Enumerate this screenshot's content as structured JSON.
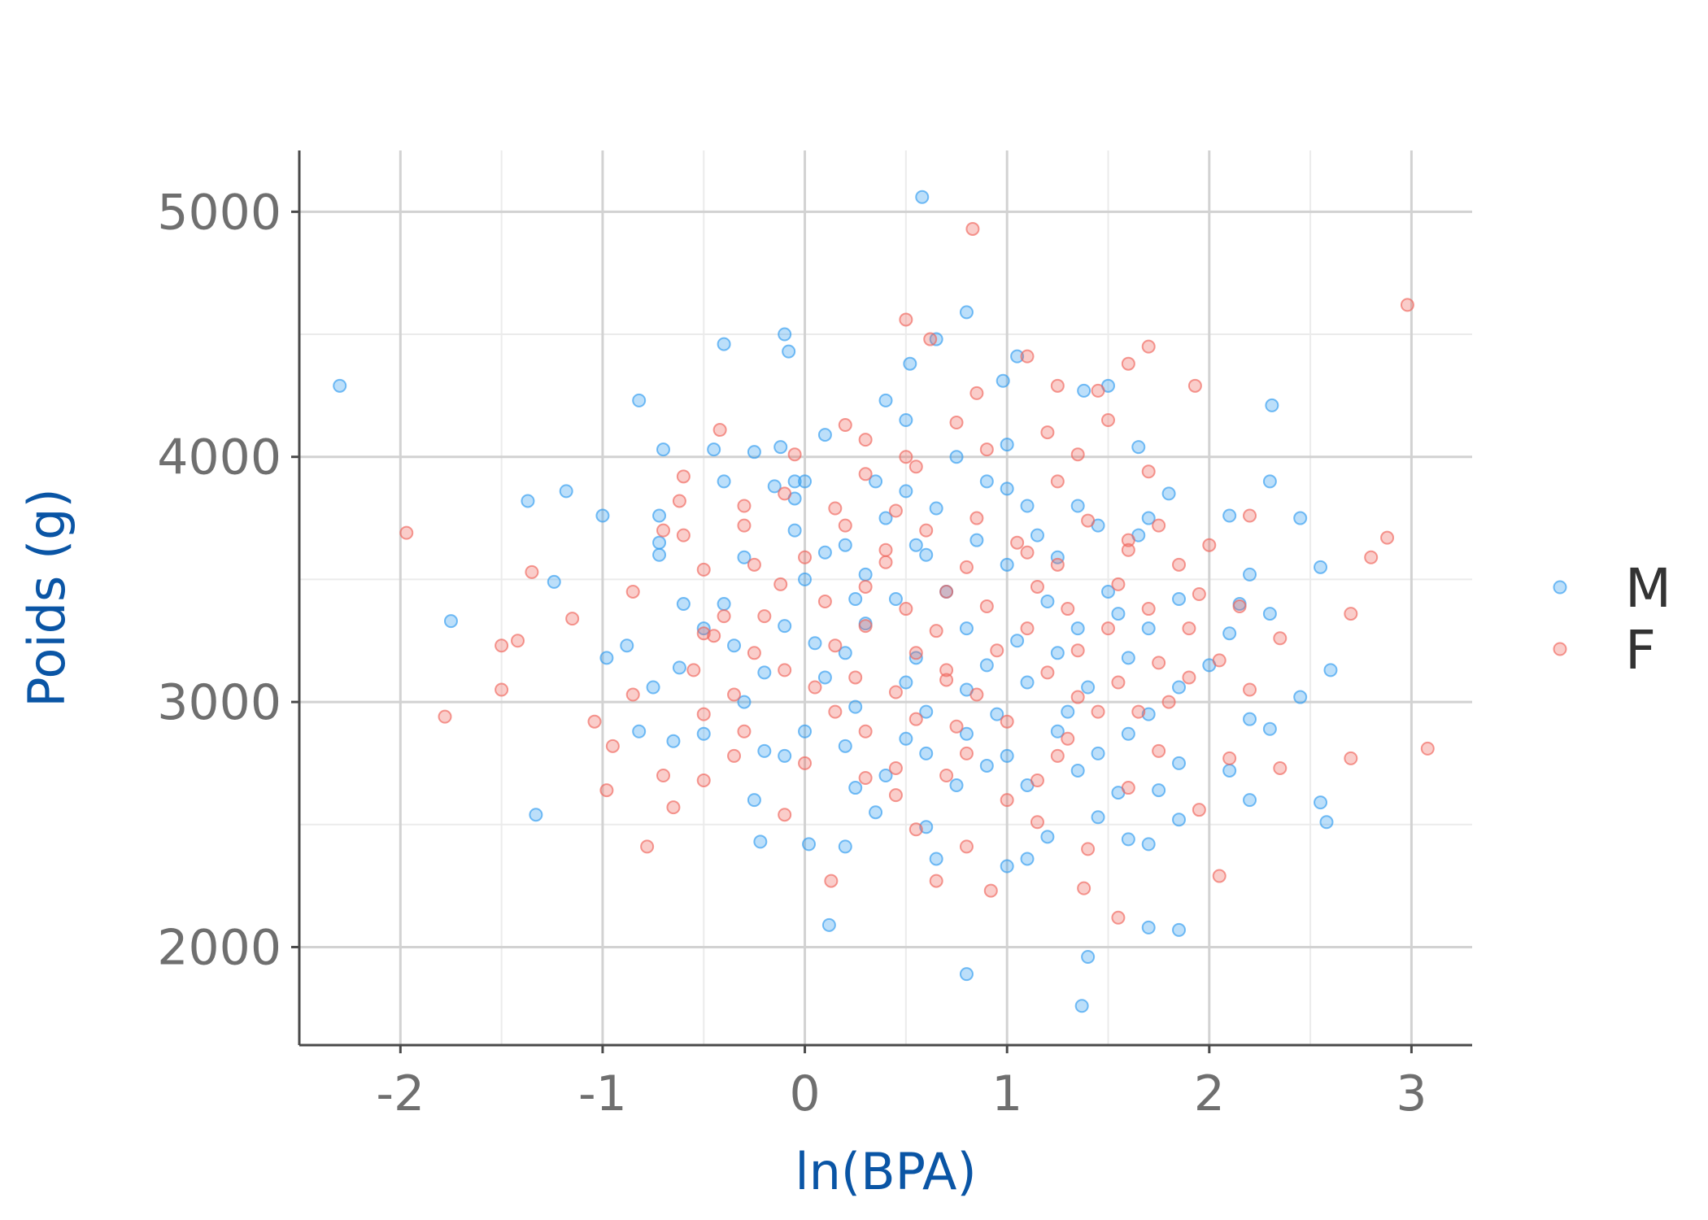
{
  "chart_data": {
    "type": "scatter",
    "title": "",
    "xlabel": "ln(BPA)",
    "ylabel": "Poids (g)",
    "xlim": [
      -2.5,
      3.3
    ],
    "ylim": [
      1600,
      5250
    ],
    "xticks": [
      -2,
      -1,
      0,
      1,
      2,
      3
    ],
    "xtick_labels": [
      "-2",
      "-1",
      "0",
      "1",
      "2",
      "3"
    ],
    "yticks": [
      2000,
      3000,
      4000,
      5000
    ],
    "ytick_labels": [
      "2000",
      "3000",
      "4000",
      "5000"
    ],
    "grid": true,
    "legend_position": "right",
    "series": [
      {
        "name": "M",
        "color": "#2f9bf0",
        "points": [
          [
            -2.3,
            4290
          ],
          [
            0.58,
            5060
          ],
          [
            0.8,
            4590
          ],
          [
            -0.1,
            4500
          ],
          [
            -0.08,
            4430
          ],
          [
            0.65,
            4480
          ],
          [
            -0.4,
            4460
          ],
          [
            0.52,
            4380
          ],
          [
            1.05,
            4410
          ],
          [
            0.98,
            4310
          ],
          [
            1.5,
            4290
          ],
          [
            1.38,
            4270
          ],
          [
            -0.82,
            4230
          ],
          [
            0.4,
            4230
          ],
          [
            0.5,
            4150
          ],
          [
            0.1,
            4090
          ],
          [
            2.31,
            4210
          ],
          [
            -0.7,
            4030
          ],
          [
            -0.45,
            4030
          ],
          [
            -0.25,
            4020
          ],
          [
            -0.12,
            4040
          ],
          [
            1.0,
            4050
          ],
          [
            1.65,
            4040
          ],
          [
            0.75,
            4000
          ],
          [
            -1.37,
            3820
          ],
          [
            -1.18,
            3860
          ],
          [
            -0.4,
            3900
          ],
          [
            -0.05,
            3900
          ],
          [
            0.0,
            3900
          ],
          [
            -0.15,
            3880
          ],
          [
            0.5,
            3860
          ],
          [
            0.35,
            3900
          ],
          [
            0.9,
            3900
          ],
          [
            1.0,
            3870
          ],
          [
            1.35,
            3800
          ],
          [
            1.8,
            3850
          ],
          [
            2.3,
            3900
          ],
          [
            -1.0,
            3760
          ],
          [
            -0.72,
            3760
          ],
          [
            -0.72,
            3650
          ],
          [
            -0.05,
            3700
          ],
          [
            0.4,
            3750
          ],
          [
            0.65,
            3790
          ],
          [
            1.1,
            3800
          ],
          [
            1.45,
            3720
          ],
          [
            1.7,
            3750
          ],
          [
            2.1,
            3760
          ],
          [
            2.45,
            3750
          ],
          [
            -0.72,
            3600
          ],
          [
            0.2,
            3640
          ],
          [
            0.55,
            3640
          ],
          [
            0.85,
            3660
          ],
          [
            1.15,
            3680
          ],
          [
            1.65,
            3680
          ],
          [
            -1.24,
            3490
          ],
          [
            -0.3,
            3590
          ],
          [
            0.1,
            3610
          ],
          [
            0.6,
            3600
          ],
          [
            1.0,
            3560
          ],
          [
            1.25,
            3590
          ],
          [
            2.2,
            3520
          ],
          [
            2.55,
            3550
          ],
          [
            -1.75,
            3330
          ],
          [
            -0.6,
            3400
          ],
          [
            -0.4,
            3400
          ],
          [
            0.0,
            3500
          ],
          [
            0.25,
            3420
          ],
          [
            0.45,
            3420
          ],
          [
            0.7,
            3450
          ],
          [
            1.2,
            3410
          ],
          [
            1.5,
            3450
          ],
          [
            1.85,
            3420
          ],
          [
            2.15,
            3400
          ],
          [
            2.3,
            3360
          ],
          [
            -0.5,
            3300
          ],
          [
            -0.1,
            3310
          ],
          [
            0.3,
            3320
          ],
          [
            0.8,
            3300
          ],
          [
            1.05,
            3250
          ],
          [
            1.35,
            3300
          ],
          [
            1.7,
            3300
          ],
          [
            2.1,
            3280
          ],
          [
            -0.88,
            3230
          ],
          [
            -0.35,
            3230
          ],
          [
            0.2,
            3200
          ],
          [
            0.55,
            3180
          ],
          [
            0.9,
            3150
          ],
          [
            1.25,
            3200
          ],
          [
            1.6,
            3180
          ],
          [
            2.0,
            3150
          ],
          [
            2.6,
            3130
          ],
          [
            -0.98,
            3180
          ],
          [
            -0.62,
            3140
          ],
          [
            -0.2,
            3120
          ],
          [
            0.1,
            3100
          ],
          [
            0.5,
            3080
          ],
          [
            0.8,
            3050
          ],
          [
            1.1,
            3080
          ],
          [
            1.4,
            3060
          ],
          [
            1.85,
            3060
          ],
          [
            2.45,
            3020
          ],
          [
            -0.75,
            3060
          ],
          [
            -0.3,
            3000
          ],
          [
            0.25,
            2980
          ],
          [
            0.6,
            2960
          ],
          [
            0.95,
            2950
          ],
          [
            1.3,
            2960
          ],
          [
            1.7,
            2950
          ],
          [
            2.2,
            2930
          ],
          [
            -0.82,
            2880
          ],
          [
            -0.5,
            2870
          ],
          [
            0.0,
            2880
          ],
          [
            0.5,
            2850
          ],
          [
            0.8,
            2870
          ],
          [
            1.25,
            2880
          ],
          [
            1.6,
            2870
          ],
          [
            2.3,
            2890
          ],
          [
            -0.65,
            2840
          ],
          [
            -0.2,
            2800
          ],
          [
            0.2,
            2820
          ],
          [
            0.6,
            2790
          ],
          [
            1.0,
            2780
          ],
          [
            1.45,
            2790
          ],
          [
            1.85,
            2750
          ],
          [
            -0.1,
            2780
          ],
          [
            0.4,
            2700
          ],
          [
            0.9,
            2740
          ],
          [
            1.35,
            2720
          ],
          [
            2.1,
            2720
          ],
          [
            -0.25,
            2600
          ],
          [
            0.25,
            2650
          ],
          [
            0.75,
            2660
          ],
          [
            1.1,
            2660
          ],
          [
            1.55,
            2630
          ],
          [
            1.75,
            2640
          ],
          [
            2.2,
            2600
          ],
          [
            2.55,
            2590
          ],
          [
            -1.33,
            2540
          ],
          [
            0.35,
            2550
          ],
          [
            0.6,
            2490
          ],
          [
            1.2,
            2450
          ],
          [
            1.45,
            2530
          ],
          [
            1.85,
            2520
          ],
          [
            2.58,
            2510
          ],
          [
            -0.22,
            2430
          ],
          [
            0.02,
            2420
          ],
          [
            0.2,
            2410
          ],
          [
            1.6,
            2440
          ],
          [
            1.7,
            2420
          ],
          [
            0.65,
            2360
          ],
          [
            1.0,
            2330
          ],
          [
            1.1,
            2360
          ],
          [
            0.12,
            2090
          ],
          [
            1.7,
            2080
          ],
          [
            1.85,
            2070
          ],
          [
            0.8,
            1890
          ],
          [
            1.4,
            1960
          ],
          [
            1.37,
            1760
          ],
          [
            -0.05,
            3830
          ],
          [
            0.3,
            3520
          ],
          [
            1.55,
            3360
          ],
          [
            0.05,
            3240
          ]
        ]
      },
      {
        "name": "F",
        "color": "#f0645a",
        "points": [
          [
            0.83,
            4930
          ],
          [
            2.98,
            4620
          ],
          [
            0.5,
            4560
          ],
          [
            0.62,
            4480
          ],
          [
            1.1,
            4410
          ],
          [
            1.7,
            4450
          ],
          [
            1.6,
            4380
          ],
          [
            1.25,
            4290
          ],
          [
            1.93,
            4290
          ],
          [
            0.85,
            4260
          ],
          [
            1.45,
            4270
          ],
          [
            0.2,
            4130
          ],
          [
            0.75,
            4140
          ],
          [
            -0.42,
            4110
          ],
          [
            0.3,
            4070
          ],
          [
            1.2,
            4100
          ],
          [
            1.5,
            4150
          ],
          [
            -0.05,
            4010
          ],
          [
            0.5,
            4000
          ],
          [
            0.9,
            4030
          ],
          [
            1.35,
            4010
          ],
          [
            -0.6,
            3920
          ],
          [
            -0.1,
            3850
          ],
          [
            0.3,
            3930
          ],
          [
            0.55,
            3960
          ],
          [
            1.25,
            3900
          ],
          [
            1.7,
            3940
          ],
          [
            -0.62,
            3820
          ],
          [
            -0.3,
            3800
          ],
          [
            0.15,
            3790
          ],
          [
            0.45,
            3780
          ],
          [
            0.85,
            3750
          ],
          [
            1.4,
            3740
          ],
          [
            1.75,
            3720
          ],
          [
            2.2,
            3760
          ],
          [
            -1.97,
            3690
          ],
          [
            -0.7,
            3700
          ],
          [
            -0.6,
            3680
          ],
          [
            -0.3,
            3720
          ],
          [
            0.2,
            3720
          ],
          [
            0.6,
            3700
          ],
          [
            1.05,
            3650
          ],
          [
            1.6,
            3660
          ],
          [
            2.0,
            3640
          ],
          [
            2.88,
            3670
          ],
          [
            -0.5,
            3540
          ],
          [
            -0.25,
            3560
          ],
          [
            0.0,
            3590
          ],
          [
            0.4,
            3570
          ],
          [
            0.8,
            3550
          ],
          [
            1.25,
            3560
          ],
          [
            1.85,
            3560
          ],
          [
            2.8,
            3590
          ],
          [
            -1.35,
            3530
          ],
          [
            -0.12,
            3480
          ],
          [
            0.3,
            3470
          ],
          [
            0.7,
            3450
          ],
          [
            1.15,
            3470
          ],
          [
            1.55,
            3480
          ],
          [
            1.95,
            3440
          ],
          [
            -0.85,
            3450
          ],
          [
            -0.4,
            3350
          ],
          [
            0.1,
            3410
          ],
          [
            0.5,
            3380
          ],
          [
            0.9,
            3390
          ],
          [
            1.3,
            3380
          ],
          [
            1.7,
            3380
          ],
          [
            2.15,
            3390
          ],
          [
            2.7,
            3360
          ],
          [
            -1.15,
            3340
          ],
          [
            -0.5,
            3280
          ],
          [
            -0.2,
            3350
          ],
          [
            0.3,
            3310
          ],
          [
            0.65,
            3290
          ],
          [
            1.1,
            3300
          ],
          [
            1.5,
            3300
          ],
          [
            1.9,
            3300
          ],
          [
            2.35,
            3260
          ],
          [
            -1.5,
            3230
          ],
          [
            -1.42,
            3250
          ],
          [
            -0.25,
            3200
          ],
          [
            0.15,
            3230
          ],
          [
            0.55,
            3200
          ],
          [
            0.95,
            3210
          ],
          [
            1.35,
            3210
          ],
          [
            1.75,
            3160
          ],
          [
            2.05,
            3170
          ],
          [
            -0.55,
            3130
          ],
          [
            -0.1,
            3130
          ],
          [
            0.25,
            3100
          ],
          [
            0.7,
            3090
          ],
          [
            1.2,
            3120
          ],
          [
            1.55,
            3080
          ],
          [
            1.9,
            3100
          ],
          [
            -1.5,
            3050
          ],
          [
            -0.35,
            3030
          ],
          [
            0.05,
            3060
          ],
          [
            0.45,
            3040
          ],
          [
            0.85,
            3030
          ],
          [
            1.35,
            3020
          ],
          [
            1.8,
            3000
          ],
          [
            2.2,
            3050
          ],
          [
            -0.85,
            3030
          ],
          [
            -0.5,
            2950
          ],
          [
            0.15,
            2960
          ],
          [
            0.55,
            2930
          ],
          [
            1.0,
            2920
          ],
          [
            1.45,
            2960
          ],
          [
            1.65,
            2960
          ],
          [
            -1.78,
            2940
          ],
          [
            -1.04,
            2920
          ],
          [
            -0.3,
            2880
          ],
          [
            0.3,
            2880
          ],
          [
            0.75,
            2900
          ],
          [
            1.3,
            2850
          ],
          [
            1.75,
            2800
          ],
          [
            3.08,
            2810
          ],
          [
            -0.95,
            2820
          ],
          [
            -0.35,
            2780
          ],
          [
            0.0,
            2750
          ],
          [
            0.45,
            2730
          ],
          [
            0.8,
            2790
          ],
          [
            1.25,
            2780
          ],
          [
            2.1,
            2770
          ],
          [
            2.7,
            2770
          ],
          [
            -0.7,
            2700
          ],
          [
            -0.5,
            2680
          ],
          [
            0.3,
            2690
          ],
          [
            0.7,
            2700
          ],
          [
            1.15,
            2680
          ],
          [
            2.35,
            2730
          ],
          [
            -0.98,
            2640
          ],
          [
            -0.65,
            2570
          ],
          [
            -0.1,
            2540
          ],
          [
            0.45,
            2620
          ],
          [
            1.0,
            2600
          ],
          [
            1.6,
            2650
          ],
          [
            1.95,
            2560
          ],
          [
            0.55,
            2480
          ],
          [
            1.15,
            2510
          ],
          [
            1.4,
            2400
          ],
          [
            -0.78,
            2410
          ],
          [
            0.8,
            2410
          ],
          [
            0.65,
            2270
          ],
          [
            0.92,
            2230
          ],
          [
            1.38,
            2240
          ],
          [
            0.13,
            2270
          ],
          [
            2.05,
            2290
          ],
          [
            1.55,
            2120
          ],
          [
            0.4,
            3620
          ],
          [
            1.1,
            3610
          ],
          [
            0.7,
            3130
          ],
          [
            1.6,
            3620
          ],
          [
            -0.45,
            3270
          ]
        ]
      }
    ]
  }
}
